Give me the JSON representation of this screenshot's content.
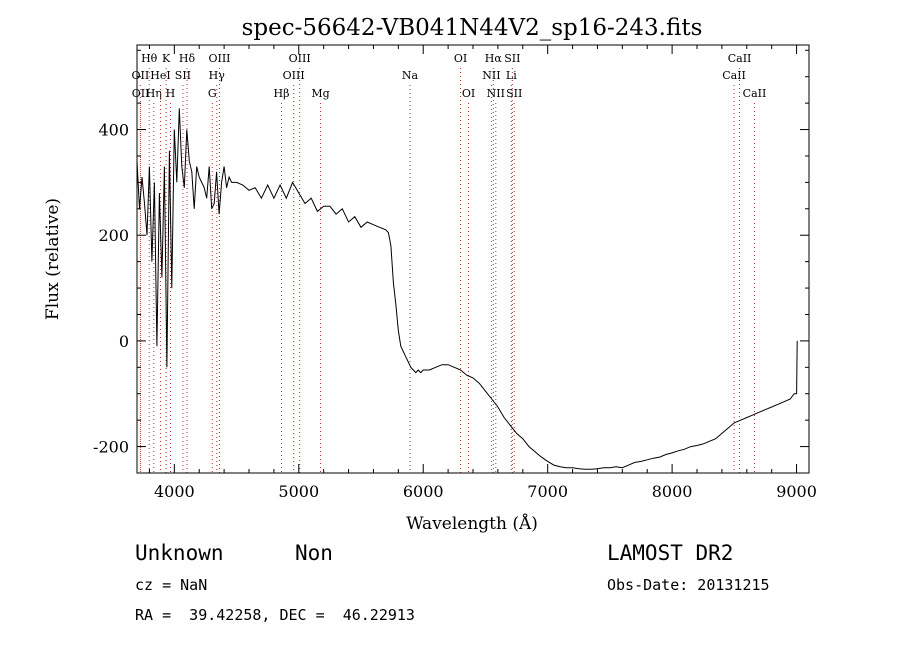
{
  "chart_data": {
    "type": "line",
    "title": "spec-56642-VB041N44V2_sp16-243.fits",
    "xlabel": "Wavelength (Å)",
    "ylabel": "Flux (relative)",
    "xlim": [
      3700,
      9100
    ],
    "ylim": [
      -250,
      560
    ],
    "xticks": [
      4000,
      5000,
      6000,
      7000,
      8000,
      9000
    ],
    "yticks": [
      -200,
      0,
      200,
      400
    ],
    "grid": false,
    "series": [
      {
        "x": [
          3700,
          3720,
          3740,
          3760,
          3780,
          3800,
          3820,
          3840,
          3860,
          3880,
          3900,
          3920,
          3940,
          3960,
          3980,
          4000,
          4020,
          4040,
          4060,
          4080,
          4100,
          4120,
          4140,
          4160,
          4180,
          4200,
          4220,
          4240,
          4260,
          4280,
          4300,
          4320,
          4340,
          4360,
          4380,
          4400,
          4420,
          4440,
          4460,
          4480,
          4500,
          4550,
          4600,
          4650,
          4700,
          4750,
          4800,
          4850,
          4900,
          4950,
          5000,
          5050,
          5100,
          5150,
          5200,
          5250,
          5300,
          5350,
          5400,
          5450,
          5500,
          5550,
          5600,
          5650,
          5700,
          5720,
          5740,
          5760,
          5780,
          5800,
          5820,
          5840,
          5860,
          5880,
          5900,
          5920,
          5940,
          5960,
          5980,
          6000,
          6050,
          6100,
          6150,
          6200,
          6250,
          6300,
          6350,
          6400,
          6450,
          6500,
          6550,
          6600,
          6650,
          6700,
          6750,
          6800,
          6850,
          6900,
          6950,
          7000,
          7050,
          7100,
          7150,
          7200,
          7250,
          7300,
          7350,
          7400,
          7450,
          7500,
          7550,
          7600,
          7650,
          7700,
          7750,
          7800,
          7850,
          7900,
          7950,
          8000,
          8050,
          8100,
          8150,
          8200,
          8250,
          8300,
          8350,
          8400,
          8450,
          8500,
          8550,
          8600,
          8650,
          8700,
          8750,
          8800,
          8850,
          8900,
          8950,
          8980,
          9000,
          9005
        ],
        "values": [
          340,
          250,
          310,
          260,
          200,
          330,
          150,
          300,
          -10,
          280,
          120,
          330,
          -50,
          360,
          100,
          400,
          300,
          440,
          330,
          290,
          400,
          340,
          320,
          250,
          330,
          310,
          300,
          290,
          270,
          330,
          250,
          260,
          320,
          240,
          300,
          330,
          290,
          310,
          300,
          300,
          300,
          295,
          285,
          290,
          270,
          295,
          270,
          295,
          270,
          300,
          280,
          260,
          270,
          245,
          255,
          255,
          240,
          250,
          225,
          235,
          215,
          225,
          220,
          215,
          210,
          205,
          180,
          110,
          70,
          20,
          -10,
          -20,
          -30,
          -40,
          -50,
          -55,
          -60,
          -55,
          -60,
          -55,
          -55,
          -50,
          -45,
          -45,
          -50,
          -55,
          -65,
          -70,
          -80,
          -95,
          -110,
          -125,
          -145,
          -160,
          -175,
          -185,
          -200,
          -210,
          -220,
          -228,
          -235,
          -238,
          -240,
          -240,
          -242,
          -243,
          -243,
          -242,
          -240,
          -240,
          -238,
          -240,
          -235,
          -230,
          -228,
          -225,
          -222,
          -220,
          -215,
          -212,
          -208,
          -205,
          -200,
          -198,
          -195,
          -190,
          -185,
          -175,
          -165,
          -155,
          -150,
          -145,
          -140,
          -135,
          -130,
          -125,
          -120,
          -115,
          -110,
          -100,
          -100,
          0
        ]
      }
    ],
    "lines": [
      {
        "label": "OII",
        "x": 3727,
        "row": 1
      },
      {
        "label": "OII",
        "x": 3729,
        "row": 2
      },
      {
        "label": "Hθ",
        "x": 3798,
        "row": 0
      },
      {
        "label": "Hη",
        "x": 3835,
        "row": 2
      },
      {
        "label": "HeI",
        "x": 3889,
        "row": 1
      },
      {
        "label": "K",
        "x": 3934,
        "row": 0
      },
      {
        "label": "SII",
        "x": 4069,
        "row": 1
      },
      {
        "label": "H",
        "x": 3969,
        "row": 2
      },
      {
        "label": "Hδ",
        "x": 4102,
        "row": 0
      },
      {
        "label": "Hγ",
        "x": 4341,
        "row": 1
      },
      {
        "label": "OIII",
        "x": 4363,
        "row": 0
      },
      {
        "label": "G",
        "x": 4305,
        "row": 2
      },
      {
        "label": "Hβ",
        "x": 4861,
        "row": 2
      },
      {
        "label": "OIII",
        "x": 4959,
        "row": 1
      },
      {
        "label": "OIII",
        "x": 5007,
        "row": 0
      },
      {
        "label": "Mg",
        "x": 5175,
        "row": 2
      },
      {
        "label": "Na",
        "x": 5894,
        "row": 1
      },
      {
        "label": "OI",
        "x": 6300,
        "row": 0
      },
      {
        "label": "OI",
        "x": 6364,
        "row": 2
      },
      {
        "label": "NII",
        "x": 6548,
        "row": 1
      },
      {
        "label": "Hα",
        "x": 6563,
        "row": 0
      },
      {
        "label": "NII",
        "x": 6583,
        "row": 2
      },
      {
        "label": "SII",
        "x": 6716,
        "row": 0
      },
      {
        "label": "Li",
        "x": 6708,
        "row": 1
      },
      {
        "label": "SII",
        "x": 6731,
        "row": 2
      },
      {
        "label": "CaII",
        "x": 8498,
        "row": 1
      },
      {
        "label": "CaII",
        "x": 8542,
        "row": 0
      },
      {
        "label": "CaII",
        "x": 8662,
        "row": 2
      }
    ]
  },
  "info": {
    "class": "Unknown",
    "subclass": "Non",
    "survey": "LAMOST DR2",
    "cz": "cz = NaN",
    "obs_date": "Obs-Date: 20131215",
    "coords": "RA =  39.42258, DEC =  46.22913"
  }
}
